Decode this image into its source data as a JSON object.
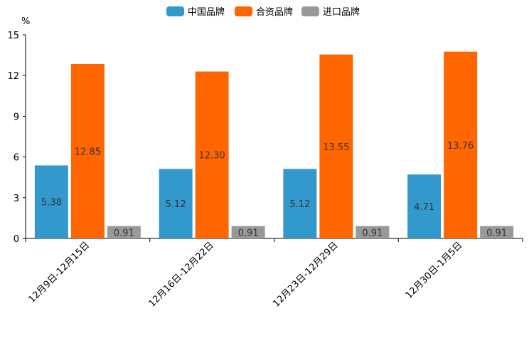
{
  "chart_data": {
    "type": "bar",
    "title": "",
    "ylabel": "%",
    "xlabel": "",
    "ylim": [
      0,
      15
    ],
    "yticks": [
      "0",
      "3",
      "6",
      "9",
      "12",
      "15"
    ],
    "categories": [
      "12月9日-12月15日",
      "12月16日-12月22日",
      "12月23日-12月29日",
      "12月30日-1月5日"
    ],
    "series": [
      {
        "name": "中国品牌",
        "color": "#3399CC",
        "values": [
          5.38,
          5.12,
          5.12,
          4.71
        ],
        "labels": [
          "5.38",
          "5.12",
          "5.12",
          "4.71"
        ]
      },
      {
        "name": "合资品牌",
        "color": "#FF6600",
        "values": [
          12.85,
          12.3,
          13.55,
          13.76
        ],
        "labels": [
          "12.85",
          "12.30",
          "13.55",
          "13.76"
        ]
      },
      {
        "name": "进口品牌",
        "color": "#999999",
        "values": [
          0.91,
          0.91,
          0.91,
          0.91
        ],
        "labels": [
          "0.91",
          "0.91",
          "0.91",
          "0.91"
        ]
      }
    ],
    "legend_position": "top-center",
    "grid": false
  }
}
